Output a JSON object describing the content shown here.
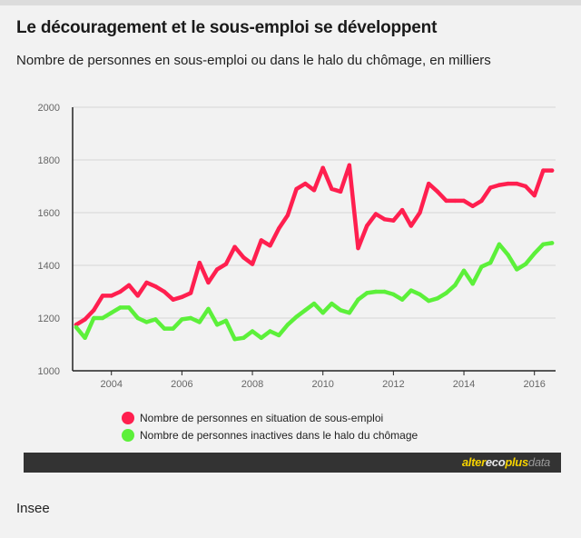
{
  "title": "Le découragement et le sous-emploi se développent",
  "subtitle": "Nombre de personnes en sous-emploi ou dans le halo du chômage, en milliers",
  "source": "Insee",
  "brand": {
    "part1": "alter",
    "part2": "eco",
    "part3": "plus",
    "part4": "data"
  },
  "chart_data": {
    "type": "line",
    "title": "",
    "xlabel": "",
    "ylabel": "",
    "xlim": [
      2002.9,
      2016.6
    ],
    "ylim": [
      1000,
      2000
    ],
    "y_ticks": [
      1000,
      1200,
      1400,
      1600,
      1800,
      2000
    ],
    "x_ticks": [
      2004,
      2006,
      2008,
      2010,
      2012,
      2014,
      2016
    ],
    "grid": true,
    "legend_position": "bottom",
    "series": [
      {
        "name": "Nombre de personnes en situation de sous-emploi",
        "color": "#ff1f4f",
        "x": [
          2003.0,
          2003.25,
          2003.5,
          2003.75,
          2004.0,
          2004.25,
          2004.5,
          2004.75,
          2005.0,
          2005.25,
          2005.5,
          2005.75,
          2006.0,
          2006.25,
          2006.5,
          2006.75,
          2007.0,
          2007.25,
          2007.5,
          2007.75,
          2008.0,
          2008.25,
          2008.5,
          2008.75,
          2009.0,
          2009.25,
          2009.5,
          2009.75,
          2010.0,
          2010.25,
          2010.5,
          2010.75,
          2011.0,
          2011.25,
          2011.5,
          2011.75,
          2012.0,
          2012.25,
          2012.5,
          2012.75,
          2013.0,
          2013.25,
          2013.5,
          2013.75,
          2014.0,
          2014.25,
          2014.5,
          2014.75,
          2015.0,
          2015.25,
          2015.5,
          2015.75,
          2016.0,
          2016.25,
          2016.5
        ],
        "values": [
          1175,
          1195,
          1230,
          1285,
          1285,
          1300,
          1325,
          1285,
          1335,
          1320,
          1300,
          1270,
          1280,
          1295,
          1410,
          1335,
          1385,
          1405,
          1470,
          1430,
          1405,
          1495,
          1475,
          1540,
          1590,
          1690,
          1710,
          1685,
          1770,
          1690,
          1680,
          1780,
          1465,
          1550,
          1595,
          1575,
          1570,
          1610,
          1550,
          1600,
          1710,
          1680,
          1645,
          1645,
          1645,
          1625,
          1645,
          1695,
          1705,
          1710,
          1710,
          1700,
          1665,
          1760,
          1760
        ]
      },
      {
        "name": "Nombre de personnes inactives dans le halo du chômage",
        "color": "#5cf03a",
        "x": [
          2003.0,
          2003.25,
          2003.5,
          2003.75,
          2004.0,
          2004.25,
          2004.5,
          2004.75,
          2005.0,
          2005.25,
          2005.5,
          2005.75,
          2006.0,
          2006.25,
          2006.5,
          2006.75,
          2007.0,
          2007.25,
          2007.5,
          2007.75,
          2008.0,
          2008.25,
          2008.5,
          2008.75,
          2009.0,
          2009.25,
          2009.5,
          2009.75,
          2010.0,
          2010.25,
          2010.5,
          2010.75,
          2011.0,
          2011.25,
          2011.5,
          2011.75,
          2012.0,
          2012.25,
          2012.5,
          2012.75,
          2013.0,
          2013.25,
          2013.5,
          2013.75,
          2014.0,
          2014.25,
          2014.5,
          2014.75,
          2015.0,
          2015.25,
          2015.5,
          2015.75,
          2016.0,
          2016.25,
          2016.5
        ],
        "values": [
          1165,
          1125,
          1200,
          1200,
          1220,
          1240,
          1240,
          1200,
          1185,
          1195,
          1160,
          1160,
          1195,
          1200,
          1185,
          1235,
          1175,
          1190,
          1120,
          1125,
          1150,
          1125,
          1150,
          1135,
          1175,
          1205,
          1230,
          1255,
          1220,
          1255,
          1230,
          1220,
          1270,
          1295,
          1300,
          1300,
          1290,
          1270,
          1305,
          1290,
          1265,
          1275,
          1295,
          1325,
          1380,
          1330,
          1395,
          1410,
          1480,
          1440,
          1385,
          1405,
          1445,
          1480,
          1485
        ]
      }
    ]
  }
}
